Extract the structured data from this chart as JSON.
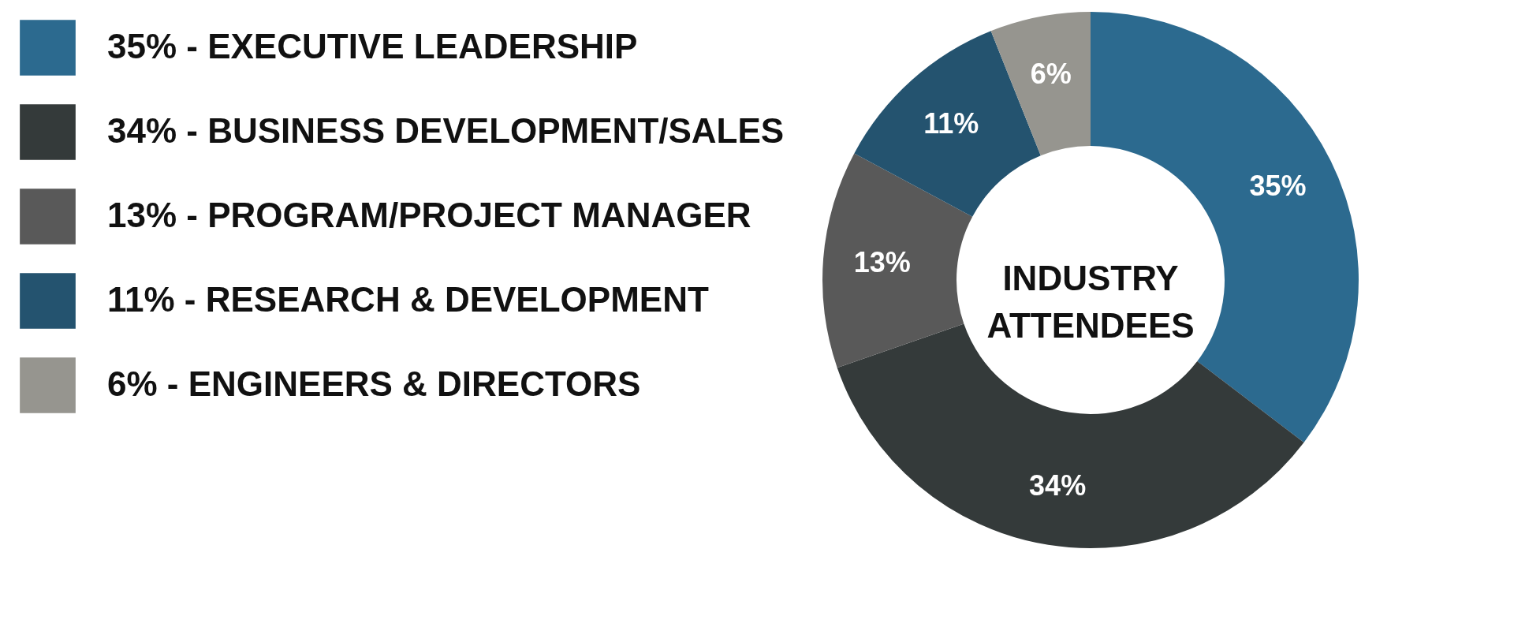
{
  "chart_data": {
    "type": "donut",
    "title": "INDUSTRY ATTENDEES",
    "categories": [
      "35% - EXECUTIVE LEADERSHIP",
      "34% - BUSINESS DEVELOPMENT/SALES",
      "13% - PROGRAM/PROJECT MANAGER",
      "11% - RESEARCH & DEVELOPMENT",
      "6% - ENGINEERS & DIRECTORS"
    ],
    "values": [
      35,
      34,
      13,
      11,
      6
    ],
    "value_labels": [
      "35%",
      "34%",
      "13%",
      "11%",
      "6%"
    ],
    "colors": [
      "#2c6a8f",
      "#343a3a",
      "#595959",
      "#24536f",
      "#96958f"
    ],
    "legend": "left"
  }
}
